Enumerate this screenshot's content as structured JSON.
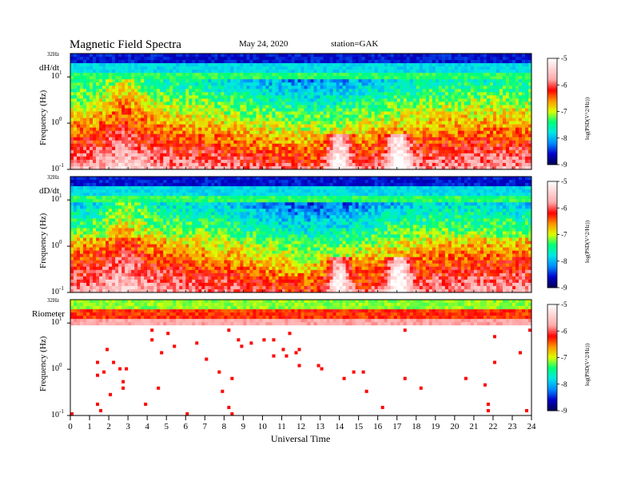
{
  "header": {
    "title": "Magnetic  Field  Spectra",
    "date": "May 24, 2020",
    "station": "station=GAK"
  },
  "xaxis": {
    "label": "Universal  Time",
    "ticks": [
      "0",
      "1",
      "2",
      "3",
      "4",
      "5",
      "6",
      "7",
      "8",
      "9",
      "10",
      "11",
      "12",
      "13",
      "14",
      "15",
      "16",
      "17",
      "18",
      "19",
      "20",
      "21",
      "22",
      "23",
      "24"
    ]
  },
  "panels": [
    {
      "name": "dH/dt",
      "ylabel": "Frequency  (Hz)",
      "top_tick": "32Hz",
      "colorbar_label": "log(PSD(V^2/Hz))"
    },
    {
      "name": "dD/dt",
      "ylabel": "Frequency  (Hz)",
      "top_tick": "32Hz",
      "colorbar_label": "log(PSD(V^2/Hz))"
    },
    {
      "name": "Riometer",
      "ylabel": "Frequency  (Hz)",
      "top_tick": "32Hz",
      "colorbar_label": "log(PSD(V^2/Hz))"
    }
  ],
  "colors": {
    "colormap": [
      "#000050",
      "#0000ff",
      "#00c8ff",
      "#00ff80",
      "#ffff00",
      "#ff0000",
      "#ffffff"
    ]
  },
  "chart_data": [
    {
      "type": "heatmap",
      "panel": "dH/dt",
      "x_range": [
        0,
        24
      ],
      "y_scale": "log",
      "y_range_hz": [
        0.1,
        32
      ],
      "y_ticks": [
        "10^-1",
        "10^0",
        "10^1"
      ],
      "colorbar": {
        "range": [
          -9,
          -5
        ],
        "ticks": [
          "-5",
          "-6",
          "-7",
          "-8",
          "-9"
        ]
      },
      "features": {
        "high_freq_low_power_band_hz": [
          20,
          32
        ],
        "midband_min_hours": [
          9,
          17
        ],
        "white_patches_hours": [
          13.5,
          17.5
        ]
      }
    },
    {
      "type": "heatmap",
      "panel": "dD/dt",
      "x_range": [
        0,
        24
      ],
      "y_scale": "log",
      "y_range_hz": [
        0.1,
        32
      ],
      "y_ticks": [
        "10^-1",
        "10^0",
        "10^1"
      ],
      "colorbar": {
        "range": [
          -9,
          -5
        ],
        "ticks": [
          "-5",
          "-6",
          "-7",
          "-8",
          "-9"
        ]
      },
      "features": {
        "high_freq_low_power_band_hz": [
          20,
          32
        ],
        "white_patches_hours": [
          13.5,
          17.5
        ]
      }
    },
    {
      "type": "heatmap",
      "panel": "Riometer",
      "x_range": [
        0,
        24
      ],
      "y_scale": "log",
      "y_range_hz": [
        0.1,
        32
      ],
      "y_ticks": [
        "10^-1",
        "10^0",
        "10^1"
      ],
      "colorbar": {
        "range": [
          -9,
          -5
        ],
        "ticks": [
          "-5",
          "-6",
          "-7",
          "-8",
          "-9"
        ]
      },
      "features": {
        "colored_band_hz": [
          8,
          32
        ]
      }
    }
  ]
}
